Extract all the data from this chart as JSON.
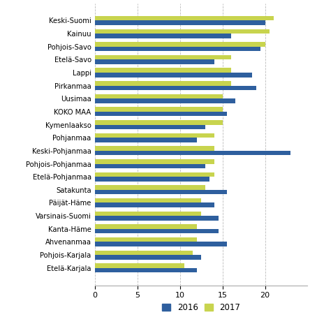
{
  "categories": [
    "Keski-Suomi",
    "Kainuu",
    "Pohjois-Savo",
    "Etelä-Savo",
    "Lappi",
    "Pirkanmaa",
    "Uusimaa",
    "KOKO MAA",
    "Kymenlaakso",
    "Pohjanmaa",
    "Keski-Pohjanmaa",
    "Pohjois-Pohjanmaa",
    "Etelä-Pohjanmaa",
    "Satakunta",
    "Päijät-Häme",
    "Varsinais-Suomi",
    "Kanta-Häme",
    "Ahvenanmaa",
    "Pohjois-Karjala",
    "Etelä-Karjala"
  ],
  "values_2016": [
    20.0,
    16.0,
    19.5,
    14.0,
    18.5,
    19.0,
    16.5,
    15.5,
    13.0,
    12.0,
    23.0,
    13.0,
    13.5,
    15.5,
    14.0,
    14.5,
    14.5,
    15.5,
    12.5,
    12.0
  ],
  "values_2017": [
    21.0,
    20.5,
    20.0,
    16.0,
    16.0,
    16.0,
    15.0,
    15.0,
    15.0,
    14.0,
    14.0,
    14.0,
    14.0,
    13.0,
    12.5,
    12.5,
    12.0,
    12.0,
    11.5,
    10.5
  ],
  "color_2016": "#2e5f9e",
  "color_2017": "#c8d44e",
  "xlim": [
    0,
    25
  ],
  "xticks": [
    0,
    5,
    10,
    15,
    20
  ],
  "legend_2016": "2016",
  "legend_2017": "2017",
  "bar_height": 0.35,
  "grid_color": "#bbbbbb",
  "background_color": "#ffffff"
}
